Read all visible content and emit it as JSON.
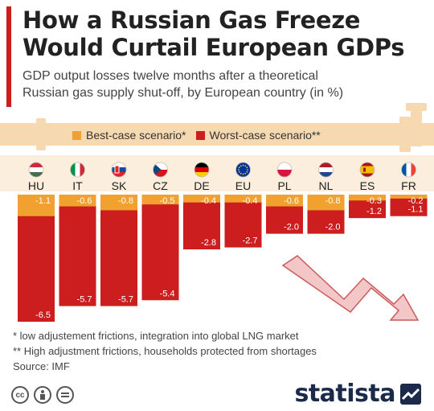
{
  "colors": {
    "best": "#f0a12f",
    "worst": "#cc1e1e",
    "pipe": "#f6d9b0",
    "accent": "#cc1e1e",
    "brand": "#1b2a4a"
  },
  "header": {
    "title_line1": "How a Russian Gas Freeze",
    "title_line2": "Would Curtail European GDPs",
    "subtitle_line1": "GDP output losses twelve months after a theoretical",
    "subtitle_line2": "Russian gas supply shut-off, by European country (in %)"
  },
  "legend": {
    "best_label": "Best-case scenario*",
    "worst_label": "Worst-case scenario**"
  },
  "chart_data": {
    "type": "bar",
    "categories": [
      "HU",
      "IT",
      "SK",
      "CZ",
      "DE",
      "EU",
      "PL",
      "NL",
      "ES",
      "FR"
    ],
    "flags": [
      "hungary-flag-icon",
      "italy-flag-icon",
      "slovakia-flag-icon",
      "czechia-flag-icon",
      "germany-flag-icon",
      "eu-flag-icon",
      "poland-flag-icon",
      "netherlands-flag-icon",
      "spain-flag-icon",
      "france-flag-icon"
    ],
    "series": [
      {
        "name": "Best-case scenario*",
        "values": [
          -1.1,
          -0.6,
          -0.8,
          -0.5,
          -0.4,
          -0.4,
          -0.6,
          -0.8,
          -0.3,
          -0.2
        ]
      },
      {
        "name": "Worst-case scenario**",
        "values": [
          -6.5,
          -5.7,
          -5.7,
          -5.4,
          -2.8,
          -2.7,
          -2.0,
          -2.0,
          -1.2,
          -1.1
        ]
      }
    ],
    "ylim": [
      -6.5,
      0
    ]
  },
  "footnotes": {
    "note1": "*  low adjustement frictions, integration into global LNG market",
    "note2": "** High adjustment frictions, households protected from shortages",
    "source": "Source: IMF"
  },
  "footer": {
    "brand": "statista",
    "cc_icon": "cc-icon",
    "by_icon": "attribution-icon",
    "nd_icon": "no-derivatives-icon"
  }
}
